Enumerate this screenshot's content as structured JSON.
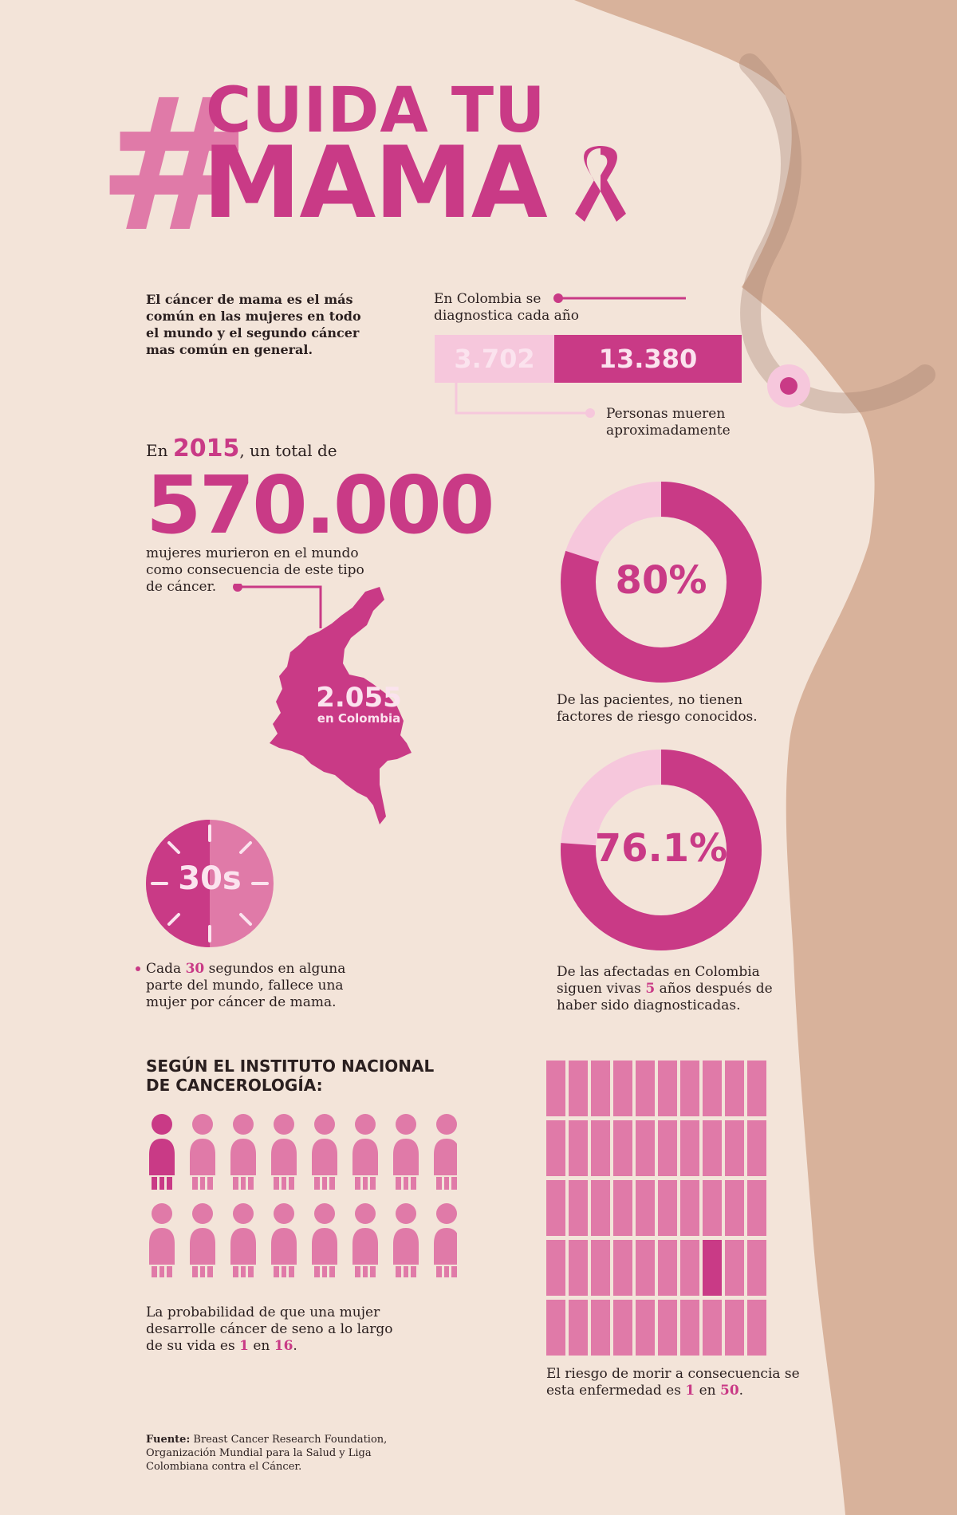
{
  "title": {
    "hash": "#",
    "line1": "CUIDA TU",
    "line2": "MAMA"
  },
  "intro": "El cáncer de mama es el más común en las mujeres en todo el mundo y el segundo cáncer mas común en general.",
  "diagnosis": {
    "label": "En Colombia se diagnostica cada año",
    "deaths_value": "3.702",
    "diagnosed_value": "13.380",
    "deaths_label": "Personas mueren aproximadamente",
    "deaths_fraction": 0.277
  },
  "global": {
    "prefix": "En",
    "year": "2015",
    "suffix": ", un total de",
    "big_number": "570.000",
    "description": "mujeres murieron en el mundo como consecuencia de este tipo de cáncer."
  },
  "colombia_map": {
    "value": "2.055",
    "label": "en Colombia"
  },
  "stat80": {
    "value": "80%",
    "fraction": 0.8,
    "caption": "De las pacientes, no tienen factores de riesgo conocidos."
  },
  "stat76": {
    "value": "76.1%",
    "fraction": 0.761,
    "caption_before": "De las afectadas en Colombia siguen vivas",
    "caption_highlight": "5",
    "caption_after": "años después de haber sido diagnosticadas."
  },
  "clock": {
    "value": "30s",
    "caption_before": "Cada",
    "caption_highlight": "30",
    "caption_after": "segundos en alguna parte del mundo, fallece una mujer por cáncer de mama."
  },
  "institute": {
    "heading": "SEGÚN EL INSTITUTO NACIONAL DE CANCEROLOGÍA:",
    "people_total": 16,
    "people_highlighted": 1,
    "caption_before": "La probabilidad de que una mujer desarrolle cáncer de seno a lo largo de su vida es",
    "caption_num1": "1",
    "caption_mid": "en",
    "caption_num2": "16",
    "caption_after": "."
  },
  "risk_grid": {
    "total": 50,
    "highlighted": 1,
    "caption_before": "El riesgo de morir a consecuencia se esta enfermedad es",
    "caption_num1": "1",
    "caption_mid": "en",
    "caption_num2": "50",
    "caption_after": "."
  },
  "source": {
    "label": "Fuente:",
    "text": "Breast Cancer Research Foundation, Organización Mundial para la Salud y Liga Colombiana contra el Cáncer."
  },
  "colors": {
    "background": "#f3e4d9",
    "skin": "#d8b29b",
    "pink_dark": "#c93a86",
    "pink_mid": "#e07aa8",
    "pink_light": "#f6c7dc"
  }
}
